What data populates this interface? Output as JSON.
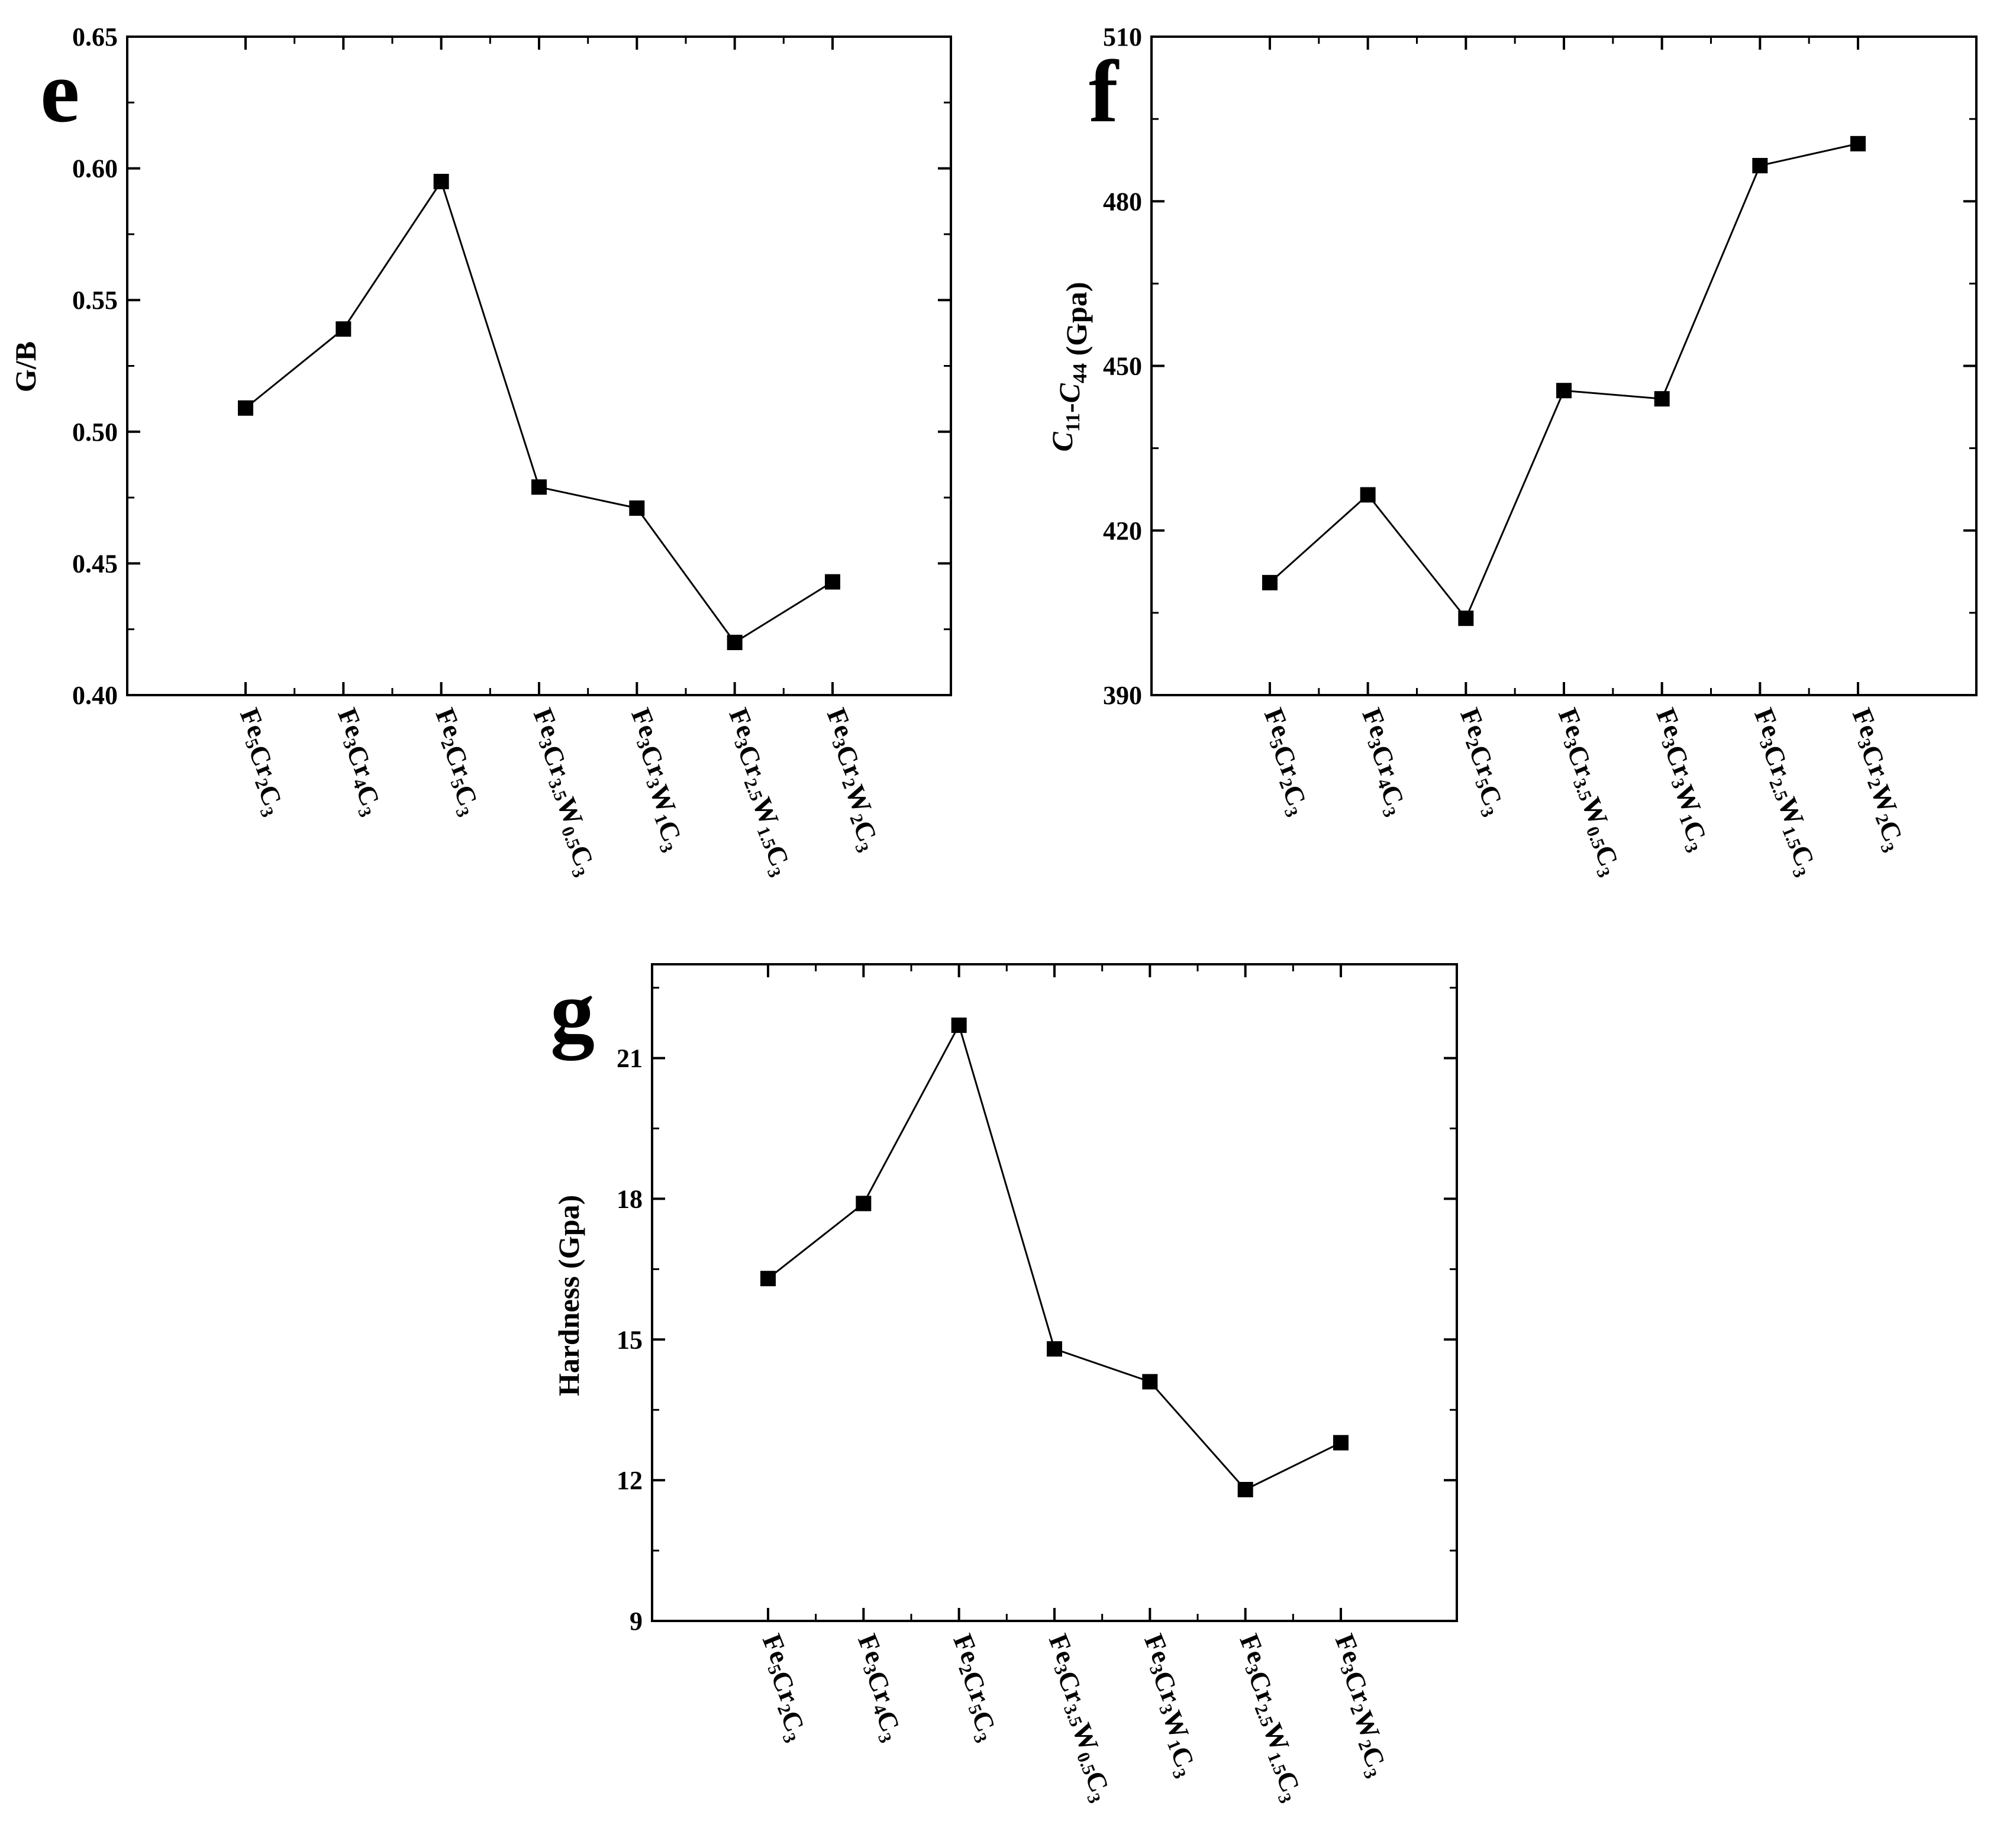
{
  "chart_data": [
    {
      "type": "line",
      "panel": "e",
      "title": "",
      "xlabel": "",
      "ylabel": "G/B",
      "ylim": [
        0.4,
        0.65
      ],
      "yticks": [
        0.4,
        0.45,
        0.5,
        0.55,
        0.6,
        0.65
      ],
      "ytick_labels": [
        "0.40",
        "0.45",
        "0.50",
        "0.55",
        "0.60",
        "0.65"
      ],
      "categories": [
        "Fe5Cr2C3",
        "Fe3Cr4C3",
        "Fe2Cr5C3",
        "Fe3Cr3.5W0.5C3",
        "Fe3Cr3W1C3",
        "Fe3Cr2.5W1.5C3",
        "Fe3Cr2W2C3"
      ],
      "values": [
        0.509,
        0.539,
        0.595,
        0.479,
        0.471,
        0.42,
        0.443
      ],
      "marker": "square",
      "grid": false
    },
    {
      "type": "line",
      "panel": "f",
      "title": "",
      "xlabel": "",
      "ylabel": "C11-C44 (Gpa)",
      "ylim": [
        390,
        510
      ],
      "yticks": [
        390,
        420,
        450,
        480,
        510
      ],
      "ytick_labels": [
        "390",
        "420",
        "450",
        "480",
        "510"
      ],
      "categories": [
        "Fe5Cr2C3",
        "Fe3Cr4C3",
        "Fe2Cr5C3",
        "Fe3Cr3.5W0.5C3",
        "Fe3Cr3W1C3",
        "Fe3Cr2.5W1.5C3",
        "Fe3Cr2W2C3"
      ],
      "values": [
        410.5,
        426.5,
        404,
        445.5,
        444,
        486.5,
        490.5
      ],
      "marker": "square",
      "grid": false
    },
    {
      "type": "line",
      "panel": "g",
      "title": "",
      "xlabel": "",
      "ylabel": "Hardness (Gpa)",
      "ylim": [
        9,
        23
      ],
      "yticks": [
        9,
        12,
        15,
        18,
        21
      ],
      "ytick_labels": [
        "9",
        "12",
        "15",
        "18",
        "21"
      ],
      "categories": [
        "Fe5Cr2C3",
        "Fe3Cr4C3",
        "Fe2Cr5C3",
        "Fe3Cr3.5W0.5C3",
        "Fe3Cr3W1C3",
        "Fe3Cr2.5W1.5C3",
        "Fe3Cr2W2C3"
      ],
      "values": [
        16.3,
        17.9,
        21.7,
        14.8,
        14.1,
        11.8,
        12.8
      ],
      "marker": "square",
      "grid": false
    }
  ],
  "categories_rich": [
    [
      [
        "Fe",
        false
      ],
      [
        "5",
        true
      ],
      [
        "Cr",
        false
      ],
      [
        "2",
        true
      ],
      [
        "C",
        false
      ],
      [
        "3",
        true
      ]
    ],
    [
      [
        "Fe",
        false
      ],
      [
        "3",
        true
      ],
      [
        "Cr",
        false
      ],
      [
        "4",
        true
      ],
      [
        "C",
        false
      ],
      [
        "3",
        true
      ]
    ],
    [
      [
        "Fe",
        false
      ],
      [
        "2",
        true
      ],
      [
        "Cr",
        false
      ],
      [
        "5",
        true
      ],
      [
        "C",
        false
      ],
      [
        "3",
        true
      ]
    ],
    [
      [
        "Fe",
        false
      ],
      [
        "3",
        true
      ],
      [
        "Cr",
        false
      ],
      [
        "3.5",
        true
      ],
      [
        "W",
        false
      ],
      [
        "0.5",
        true
      ],
      [
        "C",
        false
      ],
      [
        "3",
        true
      ]
    ],
    [
      [
        "Fe",
        false
      ],
      [
        "3",
        true
      ],
      [
        "Cr",
        false
      ],
      [
        "3",
        true
      ],
      [
        "W",
        false
      ],
      [
        "1",
        true
      ],
      [
        "C",
        false
      ],
      [
        "3",
        true
      ]
    ],
    [
      [
        "Fe",
        false
      ],
      [
        "3",
        true
      ],
      [
        "Cr",
        false
      ],
      [
        "2.5",
        true
      ],
      [
        "W",
        false
      ],
      [
        "1.5",
        true
      ],
      [
        "C",
        false
      ],
      [
        "3",
        true
      ]
    ],
    [
      [
        "Fe",
        false
      ],
      [
        "3",
        true
      ],
      [
        "Cr",
        false
      ],
      [
        "2",
        true
      ],
      [
        "W",
        false
      ],
      [
        "2",
        true
      ],
      [
        "C",
        false
      ],
      [
        "3",
        true
      ]
    ]
  ],
  "ylabel_f_parts": [
    [
      "C",
      "11",
      true
    ],
    [
      "-",
      "",
      false
    ],
    [
      "C",
      "44",
      true
    ],
    [
      " (Gpa)",
      "",
      false
    ]
  ],
  "colors": {
    "line": "#000000",
    "marker": "#000000",
    "axis": "#000000",
    "background": "#ffffff"
  }
}
